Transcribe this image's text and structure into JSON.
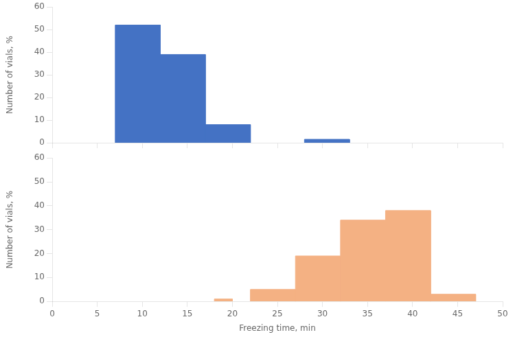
{
  "chart_data": [
    {
      "type": "bar",
      "x": [
        [
          7,
          12
        ],
        [
          12,
          17
        ],
        [
          17,
          22
        ],
        [
          28,
          33
        ]
      ],
      "values": [
        52,
        39,
        8,
        1.5
      ],
      "color": "#4472C4",
      "ylabel": "Number of vials, %",
      "xlim": [
        0,
        50
      ],
      "xticks": [
        0,
        5,
        10,
        15,
        20,
        25,
        30,
        35,
        40,
        45,
        50
      ],
      "ylim": [
        0,
        60
      ],
      "yticks": [
        0,
        10,
        20,
        30,
        40,
        50,
        60
      ],
      "tick_labels": "y",
      "grid": false
    },
    {
      "type": "bar",
      "x": [
        [
          18,
          20
        ],
        [
          22,
          27
        ],
        [
          27,
          32
        ],
        [
          32,
          37
        ],
        [
          37,
          42
        ],
        [
          42,
          47
        ]
      ],
      "values": [
        1,
        5,
        19,
        34,
        38,
        3
      ],
      "color": "#F4B183",
      "xlabel": "Freezing time, min",
      "ylabel": "Number of vials, %",
      "xlim": [
        0,
        50
      ],
      "xticks": [
        0,
        5,
        10,
        15,
        20,
        25,
        30,
        35,
        40,
        45,
        50
      ],
      "ylim": [
        0,
        60
      ],
      "yticks": [
        0,
        10,
        20,
        30,
        40,
        50,
        60
      ],
      "grid": false
    }
  ]
}
